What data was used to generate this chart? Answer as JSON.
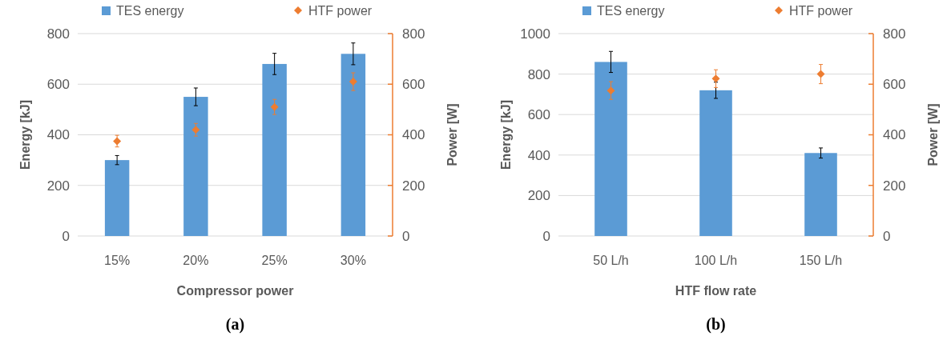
{
  "chart_data": [
    {
      "type": "bar",
      "xlabel": "Compressor power",
      "ylabel": "Energy [kJ]",
      "y2label": "Power [W]",
      "categories": [
        "15%",
        "20%",
        "25%",
        "30%"
      ],
      "series": [
        {
          "name": "TES energy",
          "color": "#5b9bd5",
          "values": [
            300,
            550,
            680,
            720
          ],
          "errors": [
            18,
            35,
            42,
            43
          ]
        },
        {
          "name": "HTF power",
          "type": "scatter",
          "axis": "y2",
          "color": "#ed7d31",
          "marker": "diamond",
          "values": [
            375,
            420,
            510,
            610
          ],
          "errors": [
            23,
            25,
            30,
            35
          ]
        }
      ],
      "ylim": [
        0,
        800
      ],
      "yticks": [
        0,
        200,
        400,
        600,
        800
      ],
      "y2lim": [
        0,
        800
      ],
      "y2ticks": [
        0,
        200,
        400,
        600,
        800
      ],
      "grid": "y",
      "legend": "top",
      "annotations": [
        "(a)"
      ]
    },
    {
      "type": "bar",
      "xlabel": "HTF flow rate",
      "ylabel": "Energy [kJ]",
      "y2label": "Power [W]",
      "categories": [
        "50 L/h",
        "100 L/h",
        "150 L/h"
      ],
      "series": [
        {
          "name": "TES energy",
          "color": "#5b9bd5",
          "values": [
            860,
            720,
            410
          ],
          "errors": [
            52,
            40,
            25
          ]
        },
        {
          "name": "HTF power",
          "type": "scatter",
          "axis": "y2",
          "color": "#ed7d31",
          "marker": "diamond",
          "values": [
            575,
            622,
            640
          ],
          "errors": [
            35,
            35,
            38
          ]
        }
      ],
      "ylim": [
        0,
        1000
      ],
      "yticks": [
        0,
        200,
        400,
        600,
        800,
        1000
      ],
      "y2lim": [
        0,
        800
      ],
      "y2ticks": [
        0,
        200,
        400,
        600,
        800
      ],
      "grid": "y",
      "legend": "top",
      "annotations": [
        "(b)"
      ]
    }
  ]
}
